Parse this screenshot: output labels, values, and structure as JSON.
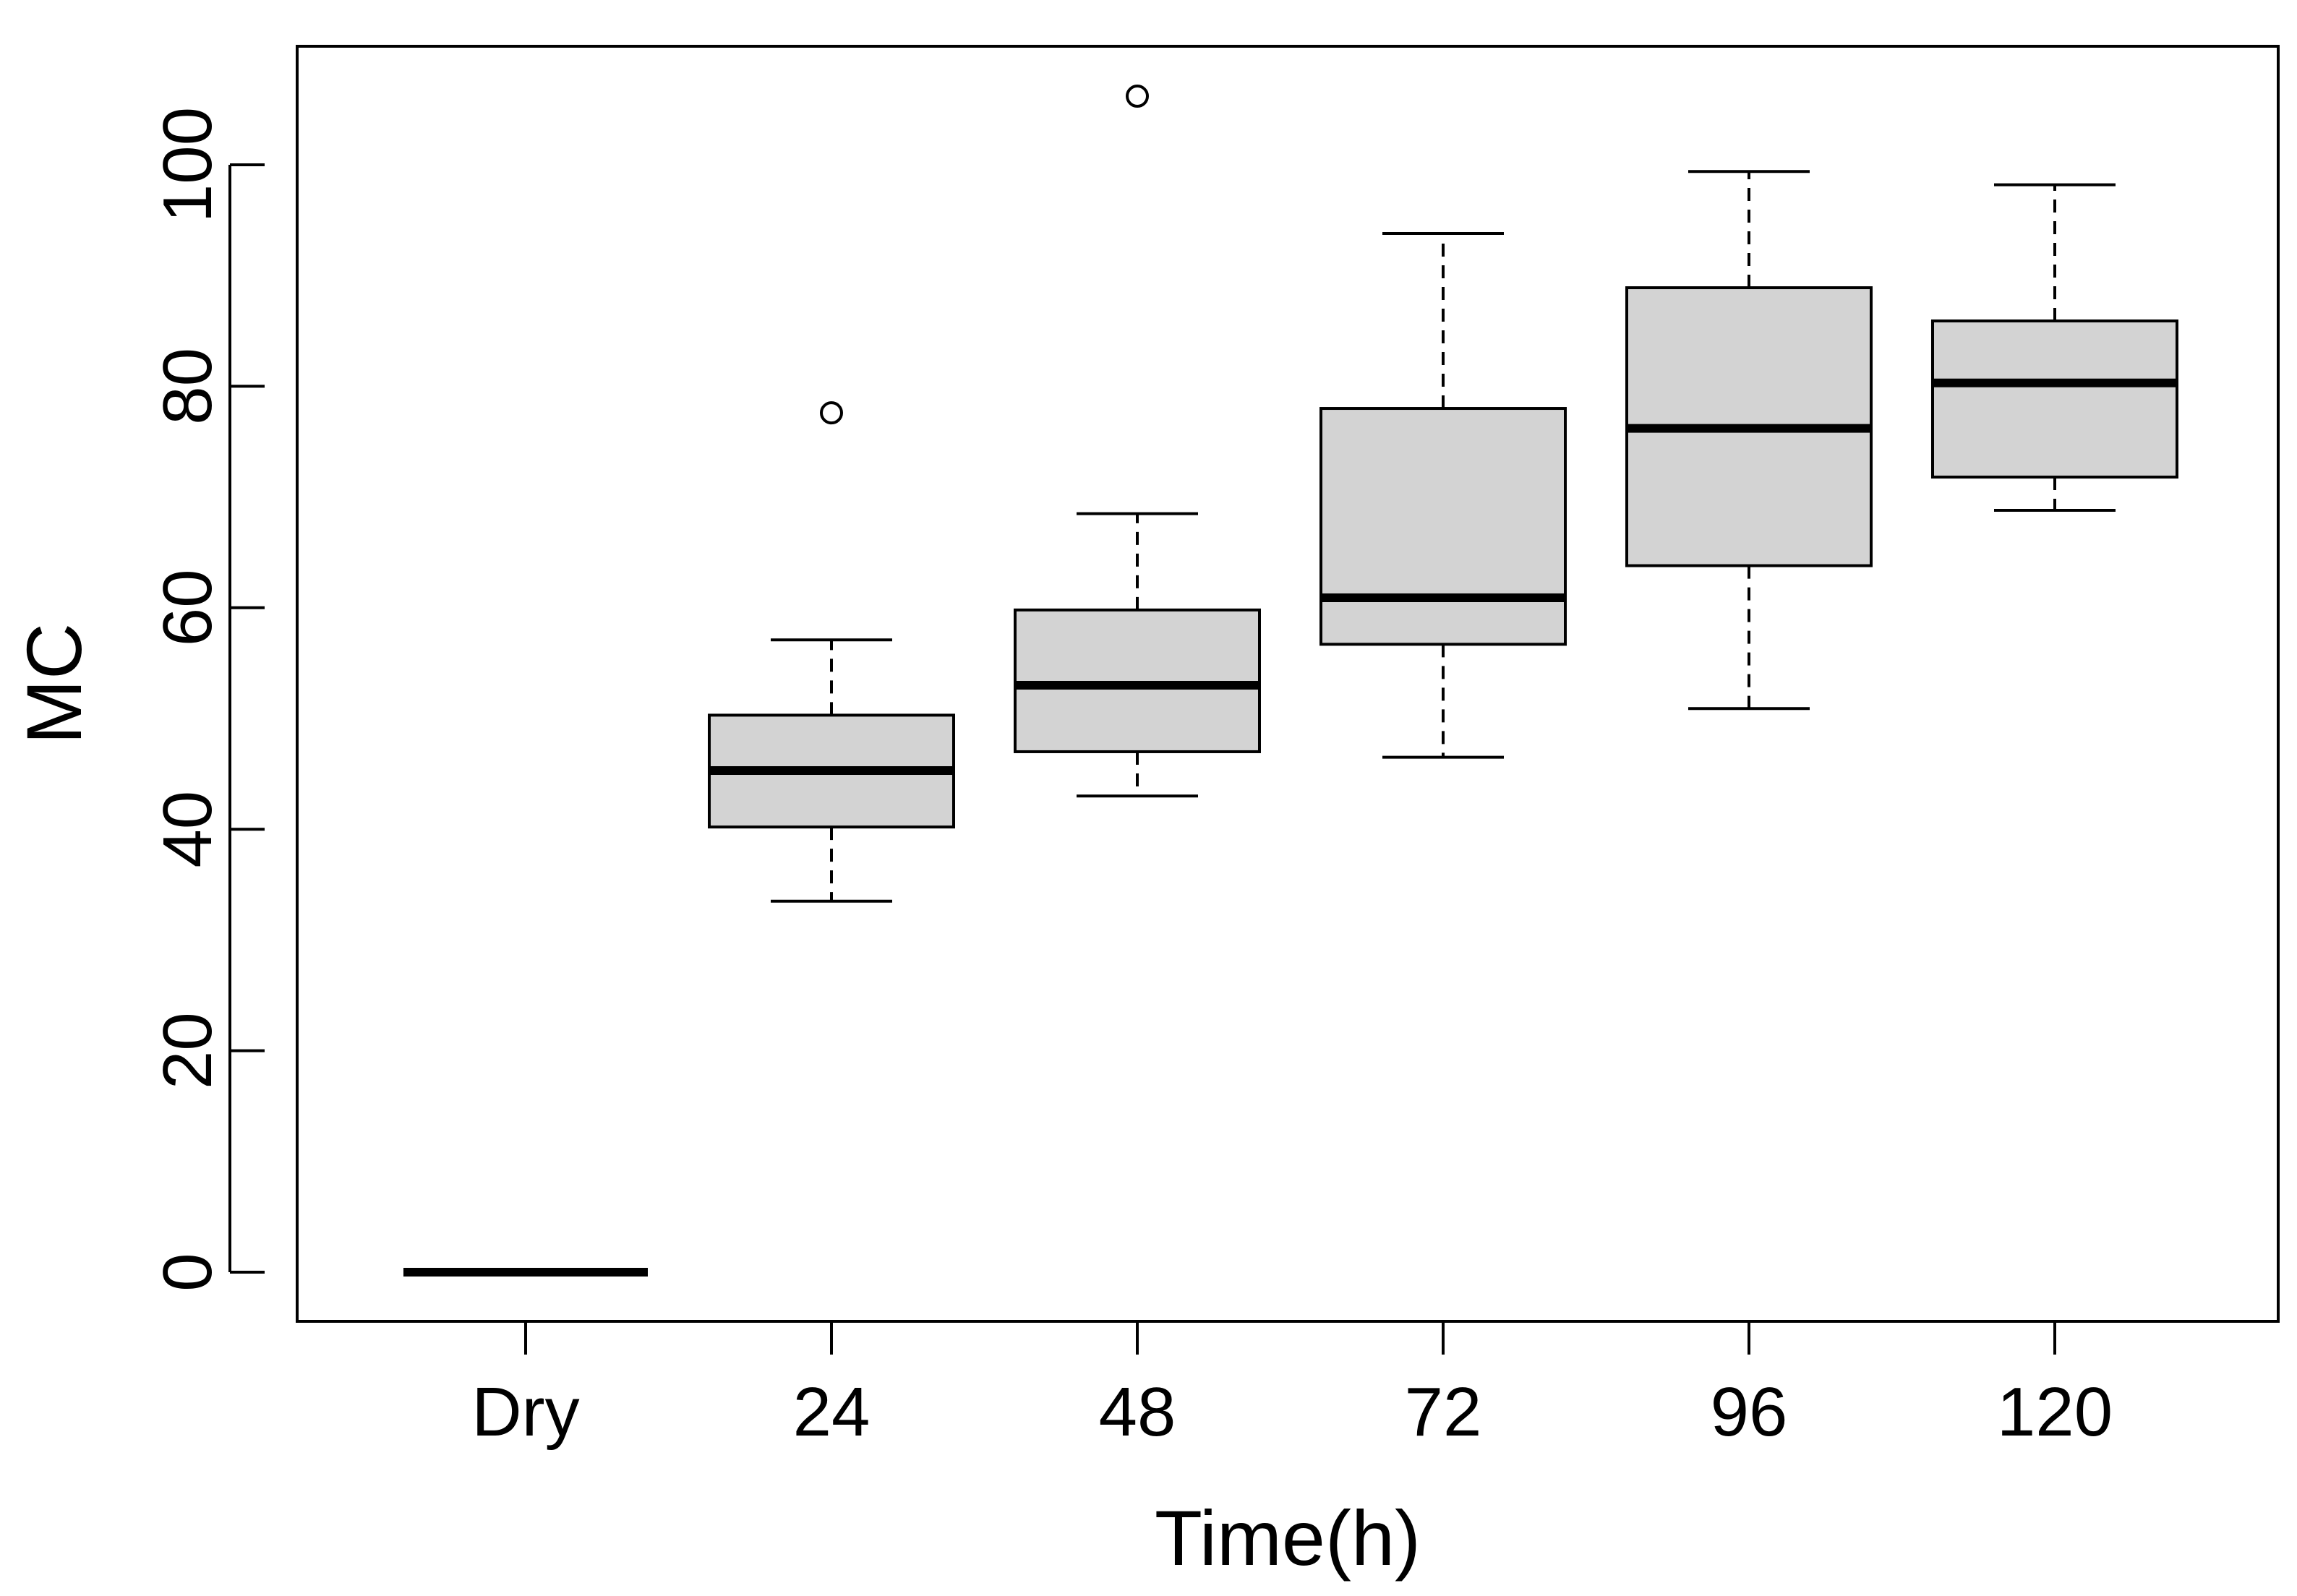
{
  "chart_data": {
    "type": "boxplot",
    "xlabel": "Time(h)",
    "ylabel": "MC",
    "ylim": [
      -4.5,
      110.5
    ],
    "yticks": [
      0,
      20,
      40,
      60,
      80,
      100
    ],
    "ytick_labels": [
      "0",
      "20",
      "40",
      "60",
      "80",
      "100"
    ],
    "categories": [
      "Dry",
      "24",
      "48",
      "72",
      "96",
      "120"
    ],
    "boxes": [
      {
        "category": "Dry",
        "whisker_low": 0,
        "q1": 0,
        "median": 0,
        "q3": 0,
        "whisker_high": 0,
        "outliers": []
      },
      {
        "category": "24",
        "whisker_low": 33.5,
        "q1": 40.2,
        "median": 45.3,
        "q3": 50.3,
        "whisker_high": 57.1,
        "outliers": [
          77.6
        ]
      },
      {
        "category": "48",
        "whisker_low": 43.0,
        "q1": 47.0,
        "median": 53.0,
        "q3": 59.8,
        "whisker_high": 68.5,
        "outliers": [
          106.2
        ]
      },
      {
        "category": "72",
        "whisker_low": 46.5,
        "q1": 56.7,
        "median": 60.9,
        "q3": 78.0,
        "whisker_high": 93.8,
        "outliers": []
      },
      {
        "category": "96",
        "whisker_low": 50.9,
        "q1": 63.8,
        "median": 76.2,
        "q3": 88.9,
        "whisker_high": 99.4,
        "outliers": []
      },
      {
        "category": "120",
        "whisker_low": 68.8,
        "q1": 71.8,
        "median": 80.3,
        "q3": 85.9,
        "whisker_high": 98.2,
        "outliers": []
      }
    ],
    "box_fill": "#d3d3d3",
    "line_color": "#000000"
  }
}
